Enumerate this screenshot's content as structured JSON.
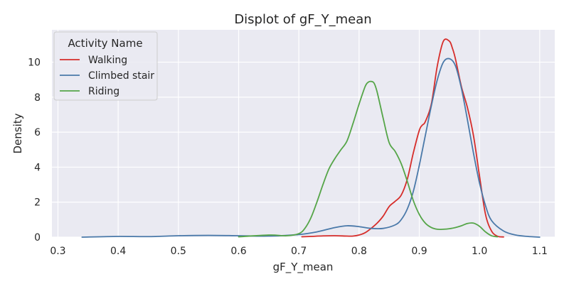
{
  "chart_data": {
    "type": "line",
    "title": "Displot of gF_Y_mean",
    "xlabel": "gF_Y_mean",
    "ylabel": "Density",
    "xlim": [
      0.29,
      1.125
    ],
    "ylim": [
      0,
      11.85
    ],
    "xticks": [
      0.3,
      0.4,
      0.5,
      0.6,
      0.7,
      0.8,
      0.9,
      1.0,
      1.1
    ],
    "xtick_labels": [
      "0.3",
      "0.4",
      "0.5",
      "0.6",
      "0.7",
      "0.8",
      "0.9",
      "1.0",
      "1.1"
    ],
    "yticks": [
      0,
      2,
      4,
      6,
      8,
      10
    ],
    "ytick_labels": [
      "0",
      "2",
      "4",
      "6",
      "8",
      "10"
    ],
    "grid": true,
    "background": "#eaeaf2",
    "legend": {
      "title": "Activity Name",
      "placement": "top-left"
    },
    "series": [
      {
        "name": "Walking",
        "color": "#d62d2a",
        "x": [
          0.705,
          0.72,
          0.74,
          0.76,
          0.78,
          0.79,
          0.8,
          0.81,
          0.82,
          0.83,
          0.84,
          0.85,
          0.86,
          0.87,
          0.88,
          0.89,
          0.9,
          0.905,
          0.91,
          0.92,
          0.93,
          0.94,
          0.95,
          0.955,
          0.96,
          0.97,
          0.98,
          0.99,
          1.0,
          1.01,
          1.02,
          1.03,
          1.04
        ],
        "y": [
          0.02,
          0.04,
          0.07,
          0.08,
          0.06,
          0.06,
          0.12,
          0.25,
          0.5,
          0.8,
          1.2,
          1.75,
          2.05,
          2.4,
          3.3,
          4.8,
          6.1,
          6.4,
          6.6,
          7.6,
          9.8,
          11.2,
          11.2,
          10.8,
          10.2,
          8.6,
          7.4,
          5.8,
          3.5,
          1.3,
          0.35,
          0.05,
          0.01
        ]
      },
      {
        "name": "Climbed stair",
        "color": "#4a79a9",
        "x": [
          0.34,
          0.4,
          0.45,
          0.5,
          0.55,
          0.6,
          0.65,
          0.7,
          0.73,
          0.76,
          0.78,
          0.8,
          0.82,
          0.84,
          0.86,
          0.87,
          0.88,
          0.89,
          0.9,
          0.91,
          0.92,
          0.93,
          0.94,
          0.95,
          0.96,
          0.97,
          0.98,
          0.99,
          1.0,
          1.01,
          1.02,
          1.04,
          1.06,
          1.08,
          1.1
        ],
        "y": [
          0.0,
          0.04,
          0.03,
          0.08,
          0.1,
          0.08,
          0.06,
          0.15,
          0.3,
          0.55,
          0.65,
          0.6,
          0.5,
          0.5,
          0.7,
          1.0,
          1.6,
          2.6,
          4.1,
          5.8,
          7.5,
          9.0,
          10.0,
          10.2,
          9.8,
          8.5,
          6.7,
          4.8,
          3.1,
          1.8,
          0.95,
          0.35,
          0.12,
          0.04,
          0.0
        ]
      },
      {
        "name": "Riding",
        "color": "#55a548",
        "x": [
          0.6,
          0.65,
          0.68,
          0.7,
          0.71,
          0.72,
          0.73,
          0.74,
          0.75,
          0.76,
          0.77,
          0.78,
          0.79,
          0.8,
          0.81,
          0.815,
          0.82,
          0.825,
          0.83,
          0.84,
          0.85,
          0.86,
          0.87,
          0.88,
          0.89,
          0.9,
          0.91,
          0.92,
          0.93,
          0.94,
          0.95,
          0.96,
          0.97,
          0.98,
          0.99,
          1.0,
          1.01,
          1.02,
          1.03
        ],
        "y": [
          0.02,
          0.12,
          0.08,
          0.2,
          0.5,
          1.1,
          2.0,
          3.0,
          3.9,
          4.5,
          5.0,
          5.5,
          6.5,
          7.6,
          8.6,
          8.85,
          8.9,
          8.8,
          8.3,
          6.8,
          5.4,
          4.9,
          4.2,
          3.2,
          2.1,
          1.3,
          0.8,
          0.55,
          0.45,
          0.45,
          0.48,
          0.55,
          0.65,
          0.78,
          0.8,
          0.62,
          0.3,
          0.08,
          0.02
        ]
      }
    ]
  }
}
